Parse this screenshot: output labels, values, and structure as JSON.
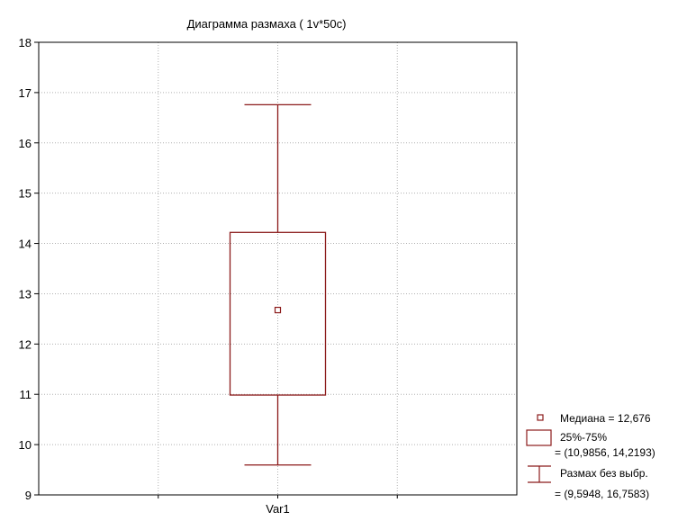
{
  "chart_data": {
    "type": "box",
    "title": "Диаграмма размаха ( 1v*50c)",
    "categories": [
      "Var1"
    ],
    "ylim": [
      9,
      18
    ],
    "y_ticks": [
      9,
      10,
      11,
      12,
      13,
      14,
      15,
      16,
      17,
      18
    ],
    "grid": true,
    "legend_position": "bottom-right",
    "boxes": [
      {
        "category": "Var1",
        "median": 12.676,
        "q1": 10.9856,
        "q3": 14.2193,
        "whisker_low": 9.5948,
        "whisker_high": 16.7583
      }
    ],
    "legend": [
      {
        "symbol": "median-square",
        "label": "Медиана = 12,676"
      },
      {
        "symbol": "box",
        "label": "25%-75%",
        "sublabel": "= (10,9856, 14,2193)"
      },
      {
        "symbol": "whisker",
        "label": "Размах без выбр.",
        "sublabel": "= (9,5948, 16,7583)"
      }
    ],
    "colors": {
      "series": "#8b1a1a",
      "grid": "#b0b0b0",
      "axis": "#000000"
    }
  }
}
